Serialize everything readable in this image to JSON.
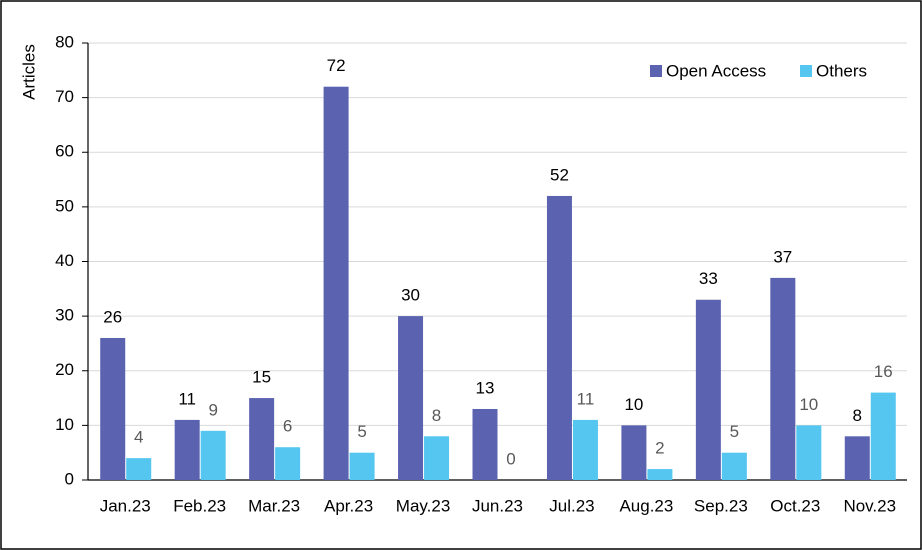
{
  "chart_data": {
    "type": "bar",
    "ylabel": "Articles",
    "categories": [
      "Jan.23",
      "Feb.23",
      "Mar.23",
      "Apr.23",
      "May.23",
      "Jun.23",
      "Jul.23",
      "Aug.23",
      "Sep.23",
      "Oct.23",
      "Nov.23"
    ],
    "series": [
      {
        "name": "Open Access",
        "color": "#5b62b0",
        "values": [
          26,
          11,
          15,
          72,
          30,
          13,
          52,
          10,
          33,
          37,
          8
        ]
      },
      {
        "name": "Others",
        "color": "#55c6f0",
        "values": [
          4,
          9,
          6,
          5,
          8,
          0,
          11,
          2,
          5,
          10,
          16
        ]
      }
    ],
    "ylim": [
      0,
      80
    ],
    "yticks": [
      0,
      10,
      20,
      30,
      40,
      50,
      60,
      70,
      80
    ],
    "grid": true,
    "legend": "top-right"
  }
}
